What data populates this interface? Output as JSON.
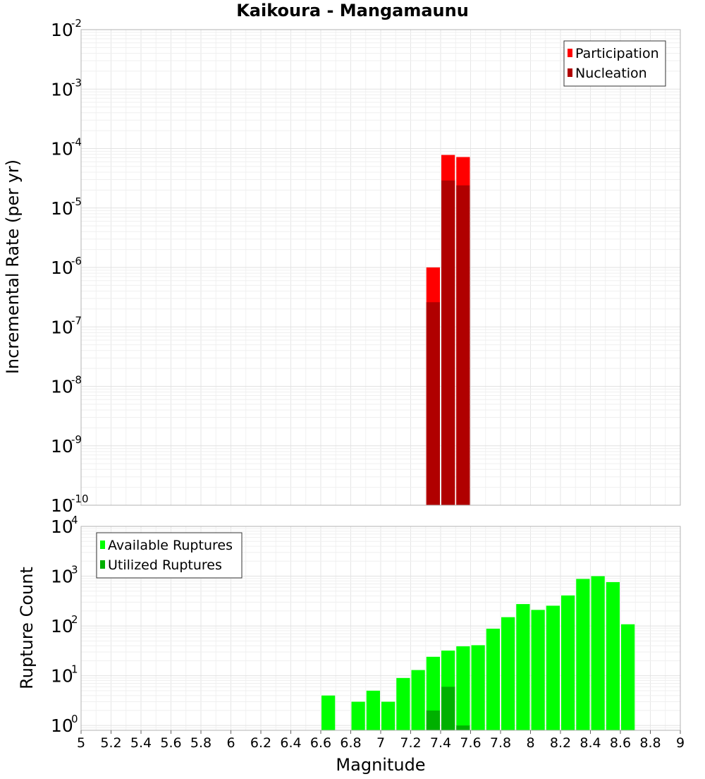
{
  "chart_data": [
    {
      "type": "bar",
      "title": "Kaikoura - Mangamaunu",
      "xlabel": "Magnitude",
      "ylabel": "Incremental Rate (per yr)",
      "yscale": "log",
      "ylim": [
        1e-10,
        0.01
      ],
      "y_tick_exponents": [
        "-10",
        "-9",
        "-8",
        "-7",
        "-6",
        "-5",
        "-4",
        "-3",
        "-2"
      ],
      "xlim": [
        5,
        9
      ],
      "grid": true,
      "legend_position": "top-right",
      "bin_width": 0.1,
      "series": [
        {
          "name": "Participation",
          "color": "#ff0000",
          "x": [
            7.35,
            7.45,
            7.55
          ],
          "values": [
            1e-06,
            7.8e-05,
            7.2e-05
          ]
        },
        {
          "name": "Nucleation",
          "color": "#b00000",
          "x": [
            7.35,
            7.45,
            7.55
          ],
          "values": [
            2.6e-07,
            2.9e-05,
            2.4e-05
          ]
        }
      ]
    },
    {
      "type": "bar",
      "title": "",
      "xlabel": "Magnitude",
      "ylabel": "Rupture Count",
      "yscale": "log",
      "ylim": [
        0.8,
        10000
      ],
      "y_tick_values": [
        1,
        10,
        100,
        1000,
        10000
      ],
      "y_tick_exponents": [
        "0",
        "1",
        "2",
        "3",
        "4"
      ],
      "xlim": [
        5,
        9
      ],
      "x_ticks": [
        "5",
        "5.2",
        "5.4",
        "5.6",
        "5.8",
        "6",
        "6.2",
        "6.4",
        "6.6",
        "6.8",
        "7",
        "7.2",
        "7.4",
        "7.6",
        "7.8",
        "8",
        "8.2",
        "8.4",
        "8.6",
        "8.8",
        "9"
      ],
      "grid": true,
      "legend_position": "top-left",
      "bin_width": 0.1,
      "series": [
        {
          "name": "Available Ruptures",
          "color": "#00ff00",
          "x": [
            6.65,
            6.85,
            6.95,
            7.05,
            7.15,
            7.25,
            7.35,
            7.45,
            7.55,
            7.65,
            7.75,
            7.85,
            7.95,
            8.05,
            8.15,
            8.25,
            8.35,
            8.45,
            8.55,
            8.65
          ],
          "values": [
            4,
            3,
            5,
            3,
            9,
            13,
            24,
            32,
            39,
            41,
            88,
            150,
            275,
            210,
            255,
            410,
            880,
            1000,
            760,
            108
          ]
        },
        {
          "name": "Utilized Ruptures",
          "color": "#00b000",
          "x": [
            7.35,
            7.45,
            7.55
          ],
          "values": [
            2,
            6,
            1
          ]
        }
      ]
    }
  ]
}
